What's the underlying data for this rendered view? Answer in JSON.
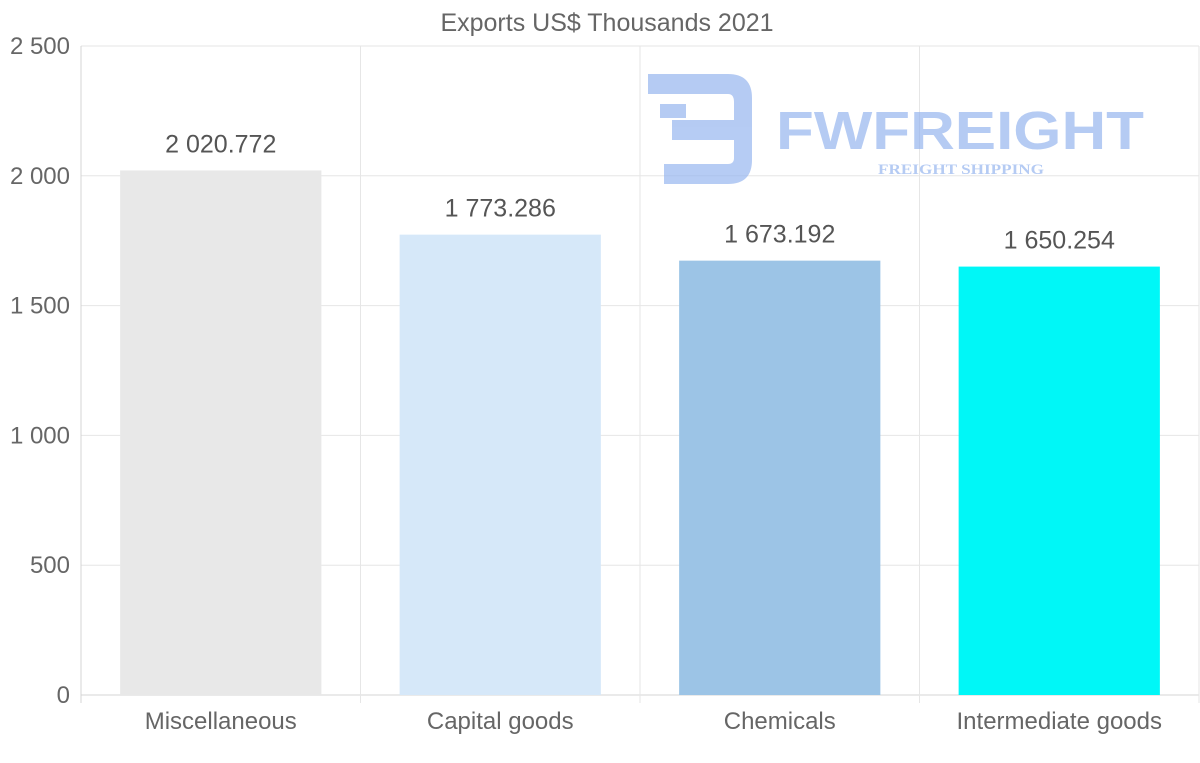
{
  "chart_data": {
    "type": "bar",
    "title": "Exports US$ Thousands 2021",
    "categories": [
      "Miscellaneous",
      "Capital goods",
      "Chemicals",
      "Intermediate goods"
    ],
    "values": [
      2020.772,
      1773.286,
      1673.192,
      1650.254
    ],
    "value_labels": [
      "2 020.772",
      "1 773.286",
      "1 673.192",
      "1 650.254"
    ],
    "colors": [
      "#e8e8e8",
      "#d6e8f9",
      "#9cc4e6",
      "#00f7f7"
    ],
    "ylim": [
      0,
      2500
    ],
    "yticks": [
      0,
      500,
      1000,
      1500,
      2000,
      2500
    ],
    "ytick_labels": [
      "0",
      "500",
      "1 000",
      "1 500",
      "2 000",
      "2 500"
    ],
    "xlabel": "",
    "ylabel": "",
    "grid": true,
    "legend": "none"
  },
  "watermark": {
    "brand": "FWFREIGHT",
    "tagline": "FREIGHT SHIPPING",
    "color": "#8fb0ee"
  }
}
